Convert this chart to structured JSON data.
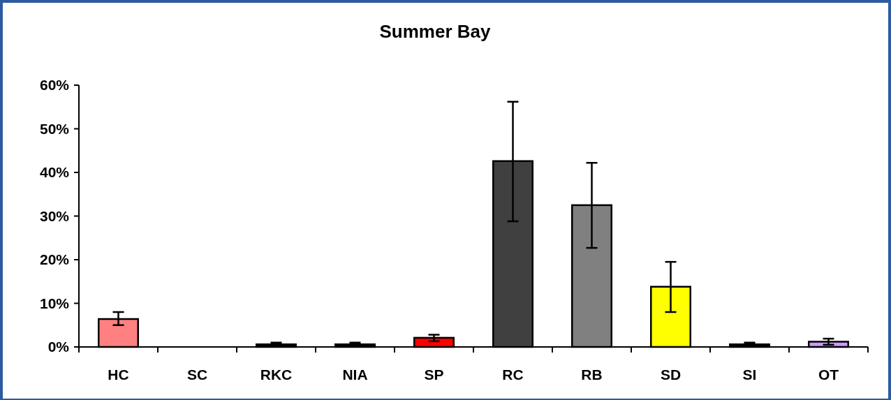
{
  "chart_data": {
    "type": "bar",
    "title": "Summer Bay",
    "categories": [
      "HC",
      "SC",
      "RKC",
      "NIA",
      "SP",
      "RC",
      "RB",
      "SD",
      "SI",
      "OT"
    ],
    "values": [
      6.4,
      0,
      0.6,
      0.6,
      2.1,
      42.6,
      32.5,
      13.8,
      0.6,
      1.2
    ],
    "colors": [
      "#ff8080",
      "#000000",
      "#000000",
      "#000000",
      "#ff0000",
      "#404040",
      "#808080",
      "#ffff00",
      "#000000",
      "#cc99ff"
    ],
    "errors": [
      [
        5,
        8
      ],
      null,
      [
        0.4,
        1
      ],
      [
        0.4,
        1
      ],
      [
        1.3,
        2.8
      ],
      [
        28.8,
        56.2
      ],
      [
        22.7,
        42.2
      ],
      [
        8,
        19.5
      ],
      [
        0.4,
        1
      ],
      [
        0.5,
        1.9
      ]
    ],
    "ylim": [
      0,
      60
    ],
    "yticks": [
      {
        "value": 0,
        "label": "0%"
      },
      {
        "value": 10,
        "label": "10%"
      },
      {
        "value": 20,
        "label": "20%"
      },
      {
        "value": 30,
        "label": "30%"
      },
      {
        "value": 40,
        "label": "40%"
      },
      {
        "value": 50,
        "label": "50%"
      },
      {
        "value": 60,
        "label": "60%"
      }
    ],
    "grid": false
  }
}
